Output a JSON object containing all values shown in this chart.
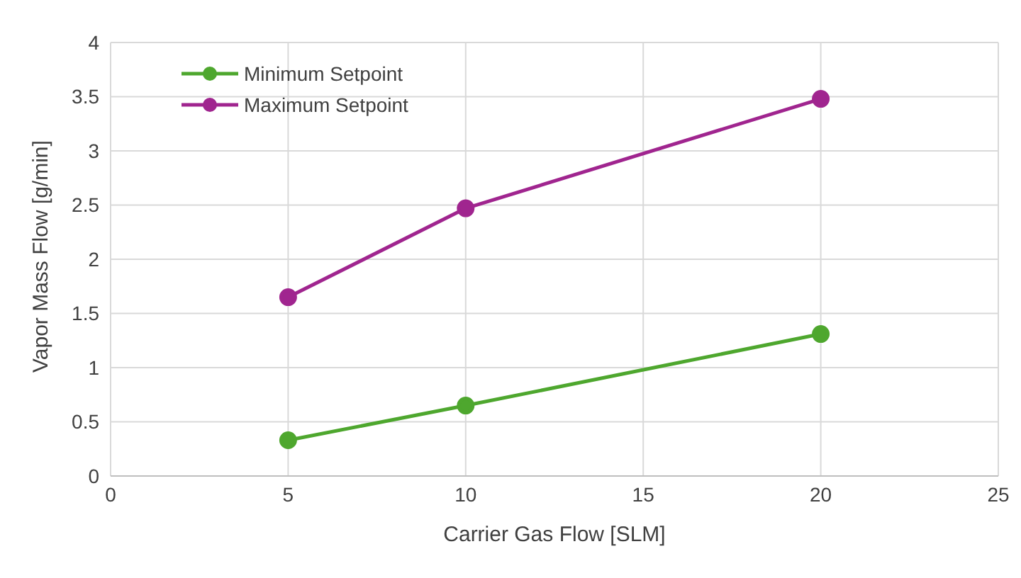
{
  "chart_data": {
    "type": "line",
    "xlabel": "Carrier Gas Flow [SLM]",
    "ylabel": "Vapor Mass Flow [g/min]",
    "x": [
      5,
      10,
      20
    ],
    "series": [
      {
        "name": "Minimum Setpoint",
        "color": "#4ea72e",
        "values": [
          0.33,
          0.65,
          1.31
        ]
      },
      {
        "name": "Maximum Setpoint",
        "color": "#a0258f",
        "values": [
          1.65,
          2.47,
          3.48
        ]
      }
    ],
    "xlim": [
      0,
      25
    ],
    "xticks": [
      0,
      5,
      10,
      15,
      20,
      25
    ],
    "ylim": [
      0,
      4
    ],
    "yticks": [
      0,
      0.5,
      1,
      1.5,
      2,
      2.5,
      3,
      3.5,
      4
    ],
    "grid": true,
    "legend": "top left",
    "marker": "circle",
    "line_style": "solid"
  }
}
